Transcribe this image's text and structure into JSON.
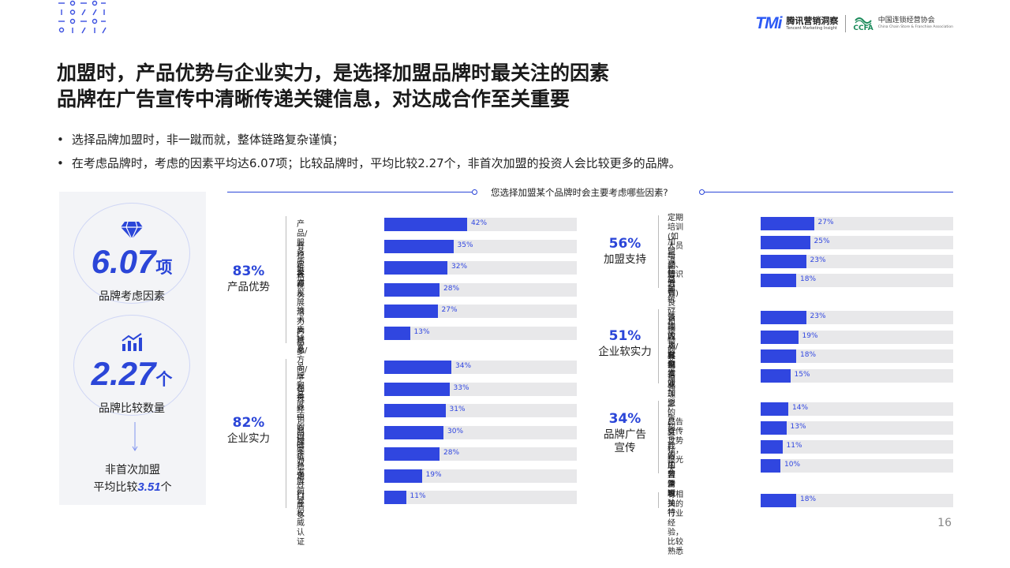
{
  "header": {
    "tmi_logo": "TMi",
    "tmi_cn": "腾讯营销洞察",
    "tmi_en": "Tencent Marketing Insight",
    "ccfa_mark": "CCFA",
    "ccfa_cn": "中国连锁经营协会",
    "ccfa_en": "China Chain Store & Franchise Association"
  },
  "title_line1": "加盟时，产品优势与企业实力，是选择加盟品牌时最关注的因素",
  "title_line2": "品牌在广告宣传中清晰传递关键信息，对达成合作至关重要",
  "bullets": [
    "选择品牌加盟时，非一蹴而就，整体链路复杂谨慎；",
    "在考虑品牌时，考虑的因素平均达6.07项；比较品牌时，平均比较2.27个，非首次加盟的投资人会比较更多的品牌。"
  ],
  "stats": {
    "factors_num": "6.07",
    "factors_unit": "项",
    "factors_label": "品牌考虑因素",
    "compare_num": "2.27",
    "compare_unit": "个",
    "compare_label": "品牌比较数量",
    "note_line1": "非首次加盟",
    "note_prefix": "平均比较",
    "note_num": "3.51",
    "note_unit": "个"
  },
  "colors": {
    "accent": "#3046e0",
    "track": "#e8e8ea",
    "panel": "#f3f4f7"
  },
  "chart_data": {
    "type": "bar",
    "title": "您选择加盟某个品牌时会主要考虑哪些因素?",
    "xlim": [
      0,
      100
    ],
    "groups": [
      {
        "name": "产品优势",
        "pct": "83%",
        "items": [
          {
            "label": "产品/服务质量",
            "value": 42
          },
          {
            "label": "有稳定客源",
            "value": 35
          },
          {
            "label": "价格优势",
            "value": 32
          },
          {
            "label": "有发展潜力的新品/\n方向/子品类",
            "value": 28
          },
          {
            "label": "技术支持多",
            "value": 27
          },
          {
            "label": "产品多",
            "value": 13
          }
        ]
      },
      {
        "name": "企业实力",
        "pct": "82%",
        "items": [
          {
            "label": "品牌知名度",
            "value": 34
          },
          {
            "label": "在行业中的口碑",
            "value": 33
          },
          {
            "label": "经销商供应链稳定",
            "value": 31
          },
          {
            "label": "品牌实力",
            "value": 30
          },
          {
            "label": "企业发展前景",
            "value": 28
          },
          {
            "label": "通过行业权威认证",
            "value": 19
          },
          {
            "label": "门店多",
            "value": 11
          }
        ]
      },
      {
        "name": "加盟支持",
        "pct": "56%",
        "items": [
          {
            "label": "定期培训(如人员培训、\n知识培训)",
            "value": 27
          },
          {
            "label": "加盟流程简单",
            "value": 25
          },
          {
            "label": "与品牌方有良好和顺畅\n的交流沟通",
            "value": 23
          },
          {
            "label": "总部统一管理人员/客源",
            "value": 18
          }
        ]
      },
      {
        "name": "企业软实力",
        "pct": "51%",
        "items": [
          {
            "label": "当地的人脉和资源",
            "value": 23
          },
          {
            "label": "成功案例",
            "value": 19
          },
          {
            "label": "自己喜欢加盟的品牌",
            "value": 18
          },
          {
            "label": "企业理念",
            "value": 15
          }
        ]
      },
      {
        "name": "品牌广告\n宣传",
        "pct": "34%",
        "items": [
          {
            "label": "广告契合我的加盟需求",
            "value": 14
          },
          {
            "label": "广告宣传攻势猛，\n曝光大",
            "value": 13
          },
          {
            "label": "广告内容清晰",
            "value": 11
          },
          {
            "label": "广告新颖独特",
            "value": 10
          }
        ]
      },
      {
        "name": "",
        "pct": "",
        "items": [
          {
            "label": "有相关的行业经验，\n比较熟悉",
            "value": 18
          }
        ]
      }
    ]
  },
  "page_number": "16"
}
